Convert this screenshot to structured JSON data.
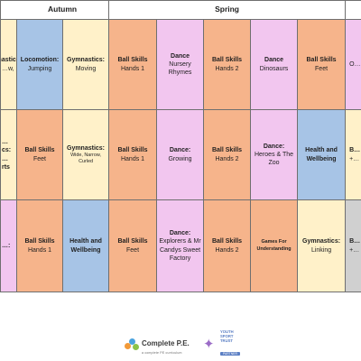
{
  "terms": {
    "autumn": "Autumn",
    "spring": "Spring",
    "summer": ""
  },
  "rows": [
    [
      {
        "title": "Gymnastics:",
        "sub": "…w,"
      },
      {
        "title": "Locomotion:",
        "sub": "Jumping"
      },
      {
        "title": "Gymnastics:",
        "sub": "Moving"
      },
      {
        "title": "Ball Skills",
        "sub": "Hands 1"
      },
      {
        "title": "Dance",
        "sub": "Nursery Rhymes"
      },
      {
        "title": "Ball Skills",
        "sub": "Hands 2"
      },
      {
        "title": "Dance",
        "sub": "Dinosaurs"
      },
      {
        "title": "Ball Skills",
        "sub": "Feet"
      },
      {
        "title": "",
        "sub": "O…"
      }
    ],
    [
      {
        "title": "…cs:",
        "sub": "…rts"
      },
      {
        "title": "Ball Skills",
        "sub": "Feet"
      },
      {
        "title": "Gymnastics:",
        "sub": "Wide, Narrow, Curled"
      },
      {
        "title": "Ball Skills",
        "sub": "Hands 1"
      },
      {
        "title": "Dance:",
        "sub": "Growing"
      },
      {
        "title": "Ball Skills",
        "sub": "Hands 2"
      },
      {
        "title": "Dance:",
        "sub": "Heroes & The Zoo"
      },
      {
        "title": "Health and Wellbeing",
        "sub": ""
      },
      {
        "title": "B…",
        "sub": "+…"
      }
    ],
    [
      {
        "title": "…:",
        "sub": ""
      },
      {
        "title": "Ball Skills",
        "sub": "Hands 1"
      },
      {
        "title": "Health and Wellbeing",
        "sub": ""
      },
      {
        "title": "Ball Skills",
        "sub": "Feet"
      },
      {
        "title": "Dance:",
        "sub": "Explorers & Mr Candys Sweet Factory"
      },
      {
        "title": "Ball Skills",
        "sub": "Hands 2"
      },
      {
        "title": "Games For Understanding",
        "sub": ""
      },
      {
        "title": "Gymnastics:",
        "sub": "Linking"
      },
      {
        "title": "B…",
        "sub": "+…"
      }
    ]
  ],
  "footer": {
    "brand": "Complete P.E.",
    "brand_sub": "a complete PE curriculum",
    "partner_line1": "YOUTH",
    "partner_line2": "SPORT",
    "partner_line3": "TRUST",
    "partner_badge": "PARTNER"
  },
  "colors": {
    "gymnastics": "#fff1c9",
    "ball_skills": "#f6b48b",
    "dance": "#f2c6ef",
    "health": "#a7c4e6",
    "grey": "#d0d0d0"
  }
}
